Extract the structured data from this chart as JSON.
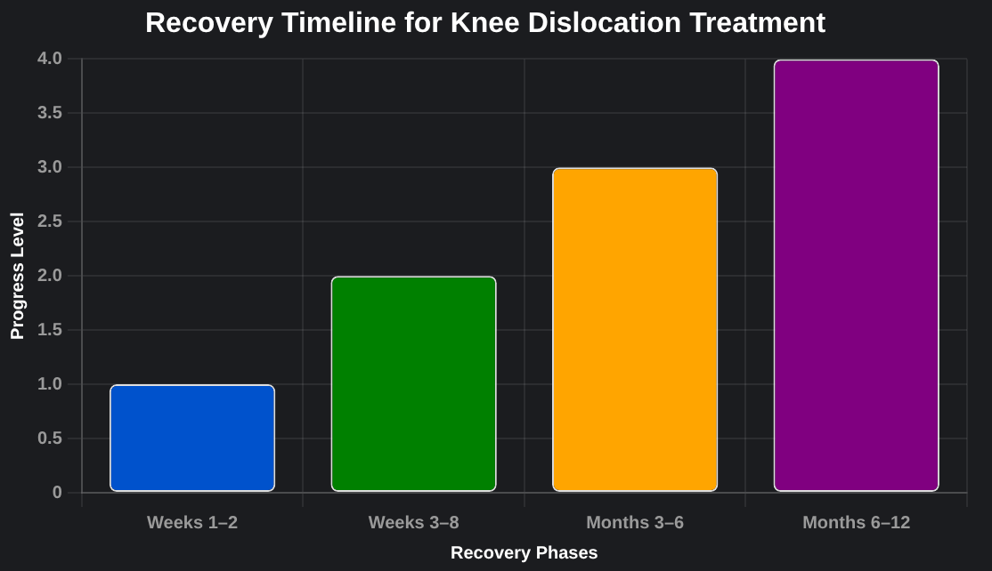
{
  "chart_data": {
    "type": "bar",
    "title": "Recovery Timeline for Knee Dislocation Treatment",
    "xlabel": "Recovery Phases",
    "ylabel": "Progress Level",
    "categories": [
      "Weeks 1–2",
      "Weeks 3–8",
      "Months 3–6",
      "Months 6–12"
    ],
    "values": [
      1,
      2,
      3,
      4
    ],
    "colors": [
      "#0052cc",
      "#008000",
      "#ffa500",
      "#800080"
    ],
    "ylim": [
      0,
      4
    ],
    "yticks": [
      0,
      0.5,
      {
        "value": 1,
        "label": "1.0"
      },
      1.5,
      {
        "value": 2,
        "label": "2.0"
      },
      2.5,
      {
        "value": 3,
        "label": "3.0"
      },
      3.5,
      {
        "value": 4,
        "label": "4.0"
      }
    ],
    "grid": true,
    "legend": false
  }
}
